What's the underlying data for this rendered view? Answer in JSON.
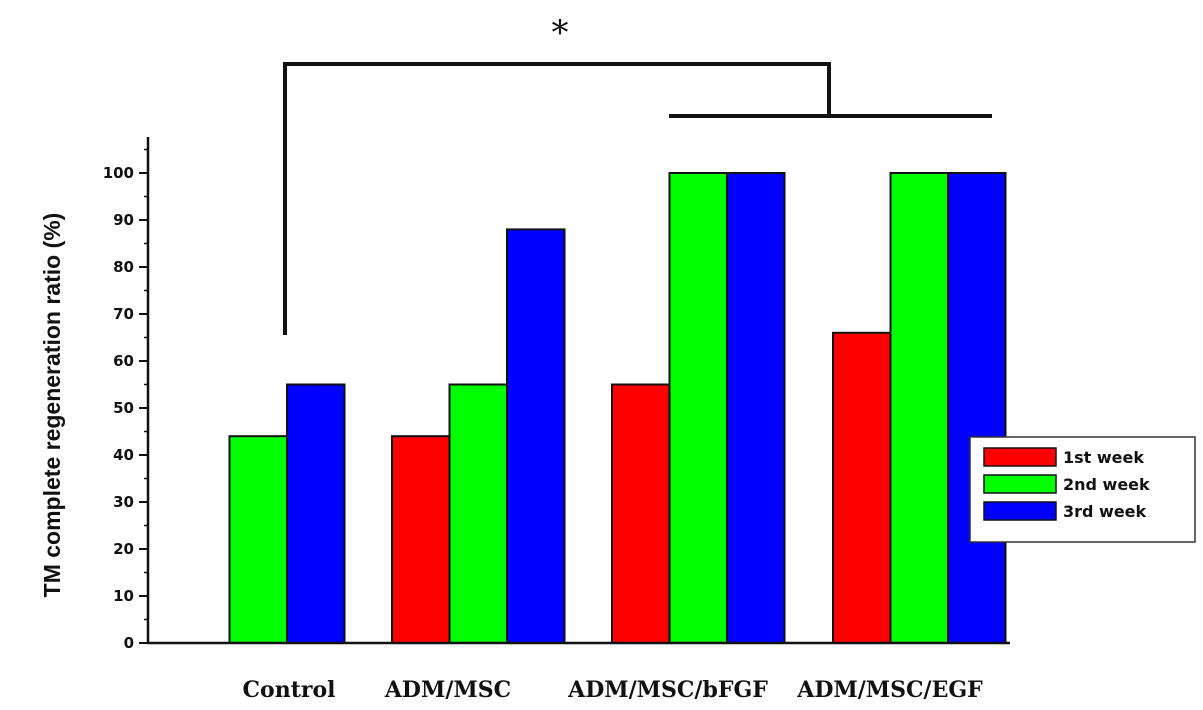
{
  "chart_data": {
    "type": "bar",
    "ylabel": "TM complete regeneration ratio (%)",
    "ylim": [
      0,
      100
    ],
    "yticks": [
      "0",
      "10",
      "20",
      "30",
      "40",
      "50",
      "60",
      "70",
      "80",
      "90",
      "100"
    ],
    "categories": [
      "Control",
      "ADM/MSC",
      "ADM/MSC/bFGF",
      "ADM/MSC/EGF"
    ],
    "series": [
      {
        "name": "1st week",
        "color": "#ff0000",
        "values": [
          null,
          44,
          55,
          66
        ]
      },
      {
        "name": "2nd week",
        "color": "#00ff00",
        "values": [
          44,
          55,
          100,
          100
        ]
      },
      {
        "name": "3rd week",
        "color": "#0000ff",
        "values": [
          55,
          88,
          100,
          100
        ]
      }
    ],
    "legend_position": "right",
    "grid": false,
    "annotations": {
      "significance_marker": "*",
      "bracket": "Control vs ADM/MSC/bFGF + ADM/MSC/EGF"
    }
  }
}
